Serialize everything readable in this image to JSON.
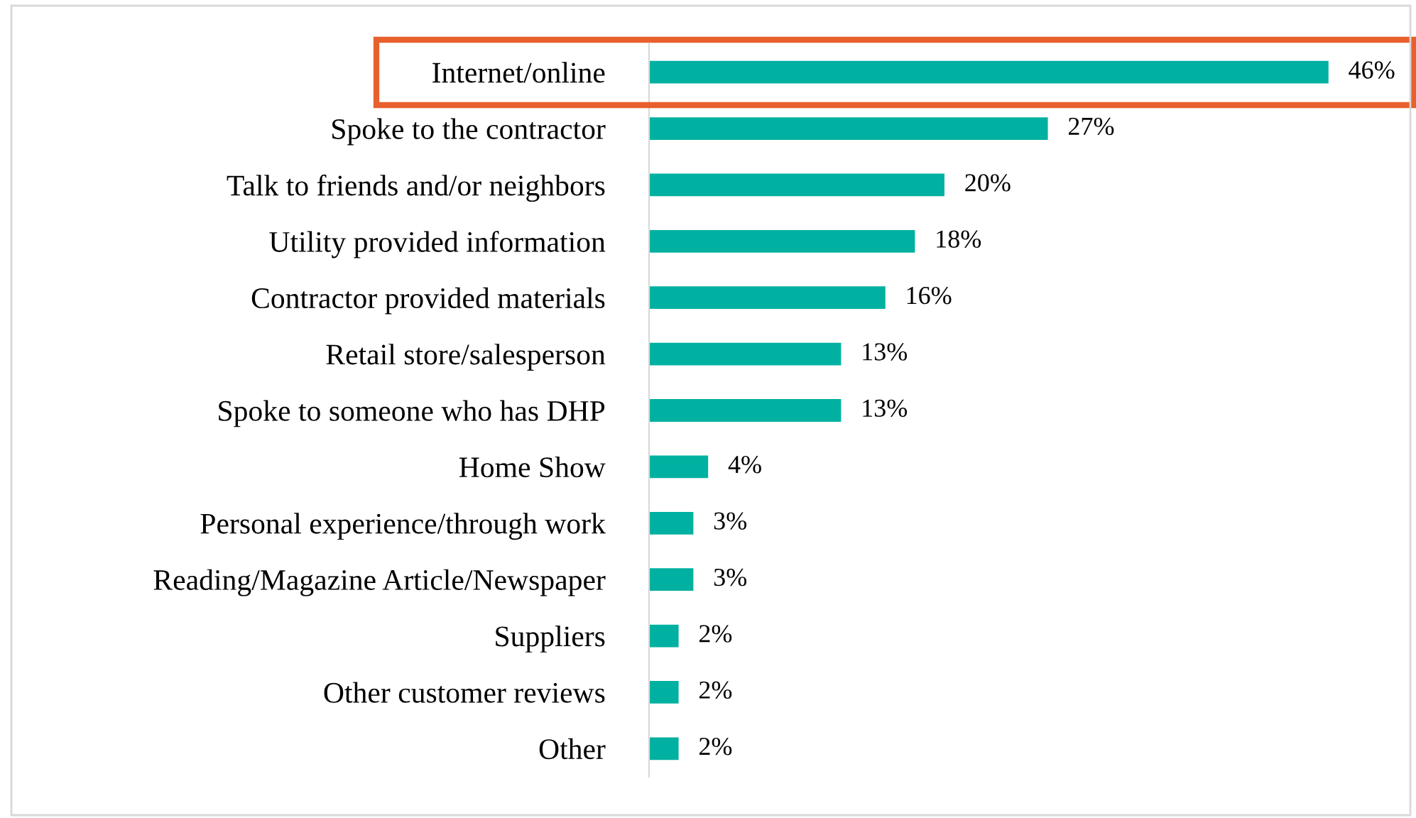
{
  "chart_data": {
    "type": "bar",
    "orientation": "horizontal",
    "categories": [
      "Internet/online",
      "Spoke to the contractor",
      "Talk to friends and/or neighbors",
      "Utility provided information",
      "Contractor provided materials",
      "Retail store/salesperson",
      "Spoke to someone who has DHP",
      "Home Show",
      "Personal experience/through work",
      "Reading/Magazine Article/Newspaper",
      "Suppliers",
      "Other customer reviews",
      "Other"
    ],
    "values": [
      46,
      27,
      20,
      18,
      16,
      13,
      13,
      4,
      3,
      3,
      2,
      2,
      2
    ],
    "value_labels": [
      "46%",
      "27%",
      "20%",
      "18%",
      "16%",
      "13%",
      "13%",
      "4%",
      "3%",
      "3%",
      "2%",
      "2%",
      "2%"
    ],
    "color": "#00b0a0",
    "grid": false,
    "legend": false
  }
}
